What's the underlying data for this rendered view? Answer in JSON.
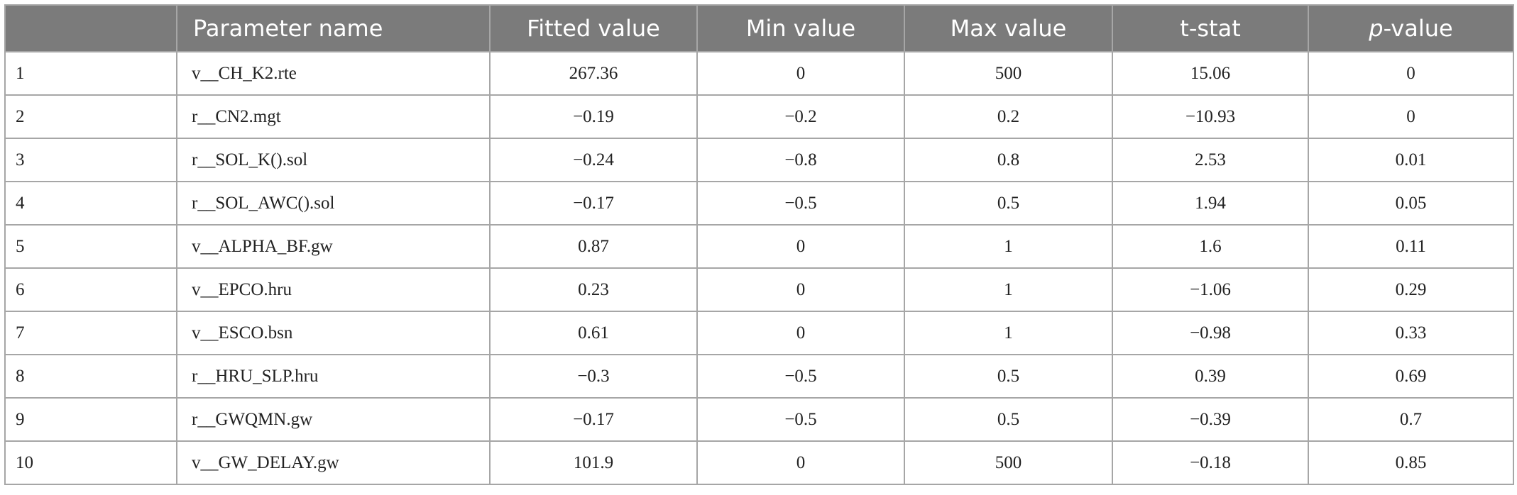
{
  "table": {
    "headers": {
      "index": "",
      "parameter_name": "Parameter name",
      "fitted_value": "Fitted value",
      "min_value": "Min value",
      "max_value": "Max value",
      "t_stat": "t-stat",
      "p_value_italic": "p",
      "p_value_suffix": "-value"
    },
    "rows": [
      {
        "idx": "1",
        "name": "v__CH_K2.rte",
        "fitted": "267.36",
        "min": "0",
        "max": "500",
        "t": "15.06",
        "p": "0"
      },
      {
        "idx": "2",
        "name": "r__CN2.mgt",
        "fitted": "−0.19",
        "min": "−0.2",
        "max": "0.2",
        "t": "−10.93",
        "p": "0"
      },
      {
        "idx": "3",
        "name": "r__SOL_K().sol",
        "fitted": "−0.24",
        "min": "−0.8",
        "max": "0.8",
        "t": "2.53",
        "p": "0.01"
      },
      {
        "idx": "4",
        "name": "r__SOL_AWC().sol",
        "fitted": "−0.17",
        "min": "−0.5",
        "max": "0.5",
        "t": "1.94",
        "p": "0.05"
      },
      {
        "idx": "5",
        "name": "v__ALPHA_BF.gw",
        "fitted": "0.87",
        "min": "0",
        "max": "1",
        "t": "1.6",
        "p": "0.11"
      },
      {
        "idx": "6",
        "name": "v__EPCO.hru",
        "fitted": "0.23",
        "min": "0",
        "max": "1",
        "t": "−1.06",
        "p": "0.29"
      },
      {
        "idx": "7",
        "name": "v__ESCO.bsn",
        "fitted": "0.61",
        "min": "0",
        "max": "1",
        "t": "−0.98",
        "p": "0.33"
      },
      {
        "idx": "8",
        "name": "r__HRU_SLP.hru",
        "fitted": "−0.3",
        "min": "−0.5",
        "max": "0.5",
        "t": "0.39",
        "p": "0.69"
      },
      {
        "idx": "9",
        "name": "r__GWQMN.gw",
        "fitted": "−0.17",
        "min": "−0.5",
        "max": "0.5",
        "t": "−0.39",
        "p": "0.7"
      },
      {
        "idx": "10",
        "name": "v__GW_DELAY.gw",
        "fitted": "101.9",
        "min": "0",
        "max": "500",
        "t": "−0.18",
        "p": "0.85"
      }
    ]
  }
}
